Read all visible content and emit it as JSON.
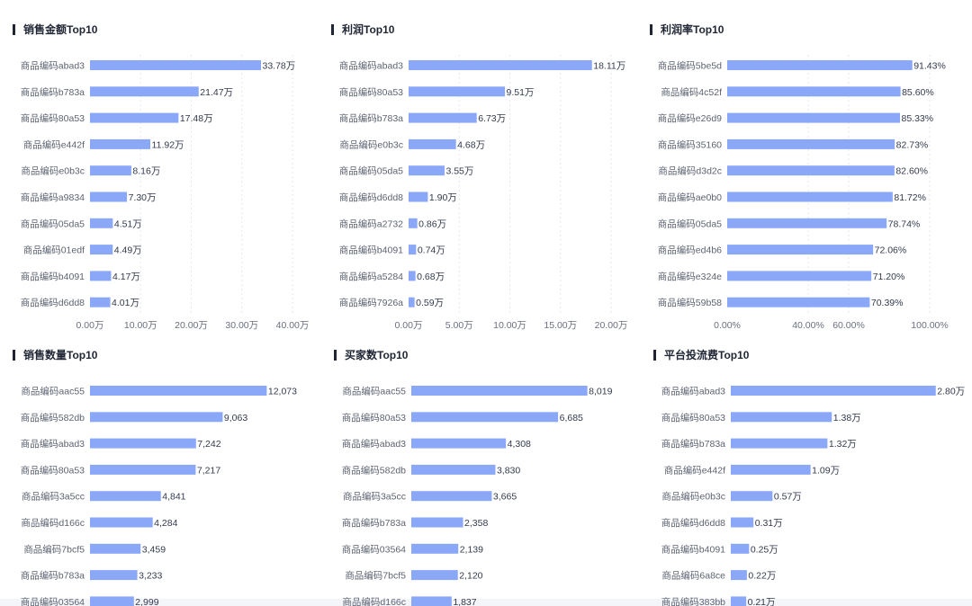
{
  "colors": {
    "bar": "#8aa7f8",
    "title_marker": "#1f2533",
    "background": "#ffffff"
  },
  "chart_data": [
    {
      "type": "bar",
      "orientation": "horizontal",
      "title": "销售金额Top10",
      "categories": [
        "商品编码abad3",
        "商品编码b783a",
        "商品编码80a53",
        "商品编码e442f",
        "商品编码e0b3c",
        "商品编码a9834",
        "商品编码05da5",
        "商品编码01edf",
        "商品编码b4091",
        "商品编码d6dd8"
      ],
      "values": [
        33.78,
        21.47,
        17.48,
        11.92,
        8.16,
        7.3,
        4.51,
        4.49,
        4.17,
        4.01
      ],
      "value_labels": [
        "33.78万",
        "21.47万",
        "17.48万",
        "11.92万",
        "8.16万",
        "7.30万",
        "4.51万",
        "4.49万",
        "4.17万",
        "4.01万"
      ],
      "xlim": [
        0,
        40
      ],
      "ticks": [
        0,
        10,
        20,
        30,
        40
      ],
      "tick_labels": [
        "0.00万",
        "10.00万",
        "20.00万",
        "30.00万",
        "40.00万"
      ]
    },
    {
      "type": "bar",
      "orientation": "horizontal",
      "title": "利润Top10",
      "categories": [
        "商品编码abad3",
        "商品编码80a53",
        "商品编码b783a",
        "商品编码e0b3c",
        "商品编码05da5",
        "商品编码d6dd8",
        "商品编码a2732",
        "商品编码b4091",
        "商品编码a5284",
        "商品编码7926a"
      ],
      "values": [
        18.11,
        9.51,
        6.73,
        4.68,
        3.55,
        1.9,
        0.86,
        0.74,
        0.68,
        0.59
      ],
      "value_labels": [
        "18.11万",
        "9.51万",
        "6.73万",
        "4.68万",
        "3.55万",
        "1.90万",
        "0.86万",
        "0.74万",
        "0.68万",
        "0.59万"
      ],
      "xlim": [
        0,
        20
      ],
      "ticks": [
        0,
        5,
        10,
        15,
        20
      ],
      "tick_labels": [
        "0.00万",
        "5.00万",
        "10.00万",
        "15.00万",
        "20.00万"
      ]
    },
    {
      "type": "bar",
      "orientation": "horizontal",
      "title": "利润率Top10",
      "categories": [
        "商品编码5be5d",
        "商品编码4c52f",
        "商品编码e26d9",
        "商品编码35160",
        "商品编码d3d2c",
        "商品编码ae0b0",
        "商品编码05da5",
        "商品编码ed4b6",
        "商品编码e324e",
        "商品编码59b58"
      ],
      "values": [
        91.43,
        85.6,
        85.33,
        82.73,
        82.6,
        81.72,
        78.74,
        72.06,
        71.2,
        70.39
      ],
      "value_labels": [
        "91.43%",
        "85.60%",
        "85.33%",
        "82.73%",
        "82.60%",
        "81.72%",
        "78.74%",
        "72.06%",
        "71.20%",
        "70.39%"
      ],
      "xlim": [
        0,
        100
      ],
      "ticks": [
        0,
        40,
        60,
        100
      ],
      "tick_labels": [
        "0.00%",
        "40.00%",
        "60.00%",
        "100.00%"
      ]
    },
    {
      "type": "bar",
      "orientation": "horizontal",
      "title": "销售数量Top10",
      "categories": [
        "商品编码aac55",
        "商品编码582db",
        "商品编码abad3",
        "商品编码80a53",
        "商品编码3a5cc",
        "商品编码d166c",
        "商品编码7bcf5",
        "商品编码b783a",
        "商品编码03564"
      ],
      "values": [
        12073,
        9063,
        7242,
        7217,
        4841,
        4284,
        3459,
        3233,
        2999
      ],
      "value_labels": [
        "12,073",
        "9,063",
        "7,242",
        "7,217",
        "4,841",
        "4,284",
        "3,459",
        "3,233",
        "2,999"
      ],
      "xlim": [
        0,
        15000
      ]
    },
    {
      "type": "bar",
      "orientation": "horizontal",
      "title": "买家数Top10",
      "categories": [
        "商品编码aac55",
        "商品编码80a53",
        "商品编码abad3",
        "商品编码582db",
        "商品编码3a5cc",
        "商品编码b783a",
        "商品编码03564",
        "商品编码7bcf5",
        "商品编码d166c"
      ],
      "values": [
        8019,
        6685,
        4308,
        3830,
        3665,
        2358,
        2139,
        2120,
        1837
      ],
      "value_labels": [
        "8,019",
        "6,685",
        "4,308",
        "3,830",
        "3,665",
        "2,358",
        "2,139",
        "2,120",
        "1,837"
      ],
      "xlim": [
        0,
        10000
      ]
    },
    {
      "type": "bar",
      "orientation": "horizontal",
      "title": "平台投流费Top10",
      "categories": [
        "商品编码abad3",
        "商品编码80a53",
        "商品编码b783a",
        "商品编码e442f",
        "商品编码e0b3c",
        "商品编码d6dd8",
        "商品编码b4091",
        "商品编码6a8ce",
        "商品编码383bb"
      ],
      "values": [
        2.8,
        1.38,
        1.32,
        1.09,
        0.57,
        0.31,
        0.25,
        0.22,
        0.21
      ],
      "value_labels": [
        "2.80万",
        "1.38万",
        "1.32万",
        "1.09万",
        "0.57万",
        "0.31万",
        "0.25万",
        "0.22万",
        "0.21万"
      ],
      "xlim": [
        0,
        3
      ]
    }
  ]
}
